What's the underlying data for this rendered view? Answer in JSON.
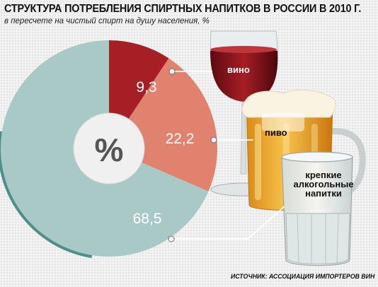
{
  "title": "СТРУКТУРА ПОТРЕБЛЕНИЯ СПИРТНЫХ НАПИТКОВ В РОССИИ В 2010 Г.",
  "subtitle": "в пересчете на чистый спирт на душу населения, %",
  "source": "ИСТОЧНИК: АССОЦИАЦИЯ ИМПОРТЕРОВ ВИН",
  "center_symbol": "%",
  "colors": {
    "wine": "#a51f25",
    "beer": "#e0826e",
    "spirits": "#a9c9c6",
    "rim": "#4f8f88",
    "hole": "#f0f0f0"
  },
  "chart_data": {
    "type": "pie",
    "variant": "donut",
    "unit": "%",
    "slices": [
      {
        "label": "вино",
        "value": 9.3,
        "value_label": "9,3",
        "color": "#a51f25"
      },
      {
        "label": "пиво",
        "value": 22.2,
        "value_label": "22,2",
        "color": "#e0826e"
      },
      {
        "label": "крепкие алкогольные напитки",
        "value": 68.5,
        "value_label": "68,5",
        "color": "#a9c9c6"
      }
    ],
    "category_labels": {
      "wine": "вино",
      "beer": "пиво",
      "spirits_lines": [
        "крепкие",
        "алкогольные",
        "напитки"
      ]
    }
  }
}
